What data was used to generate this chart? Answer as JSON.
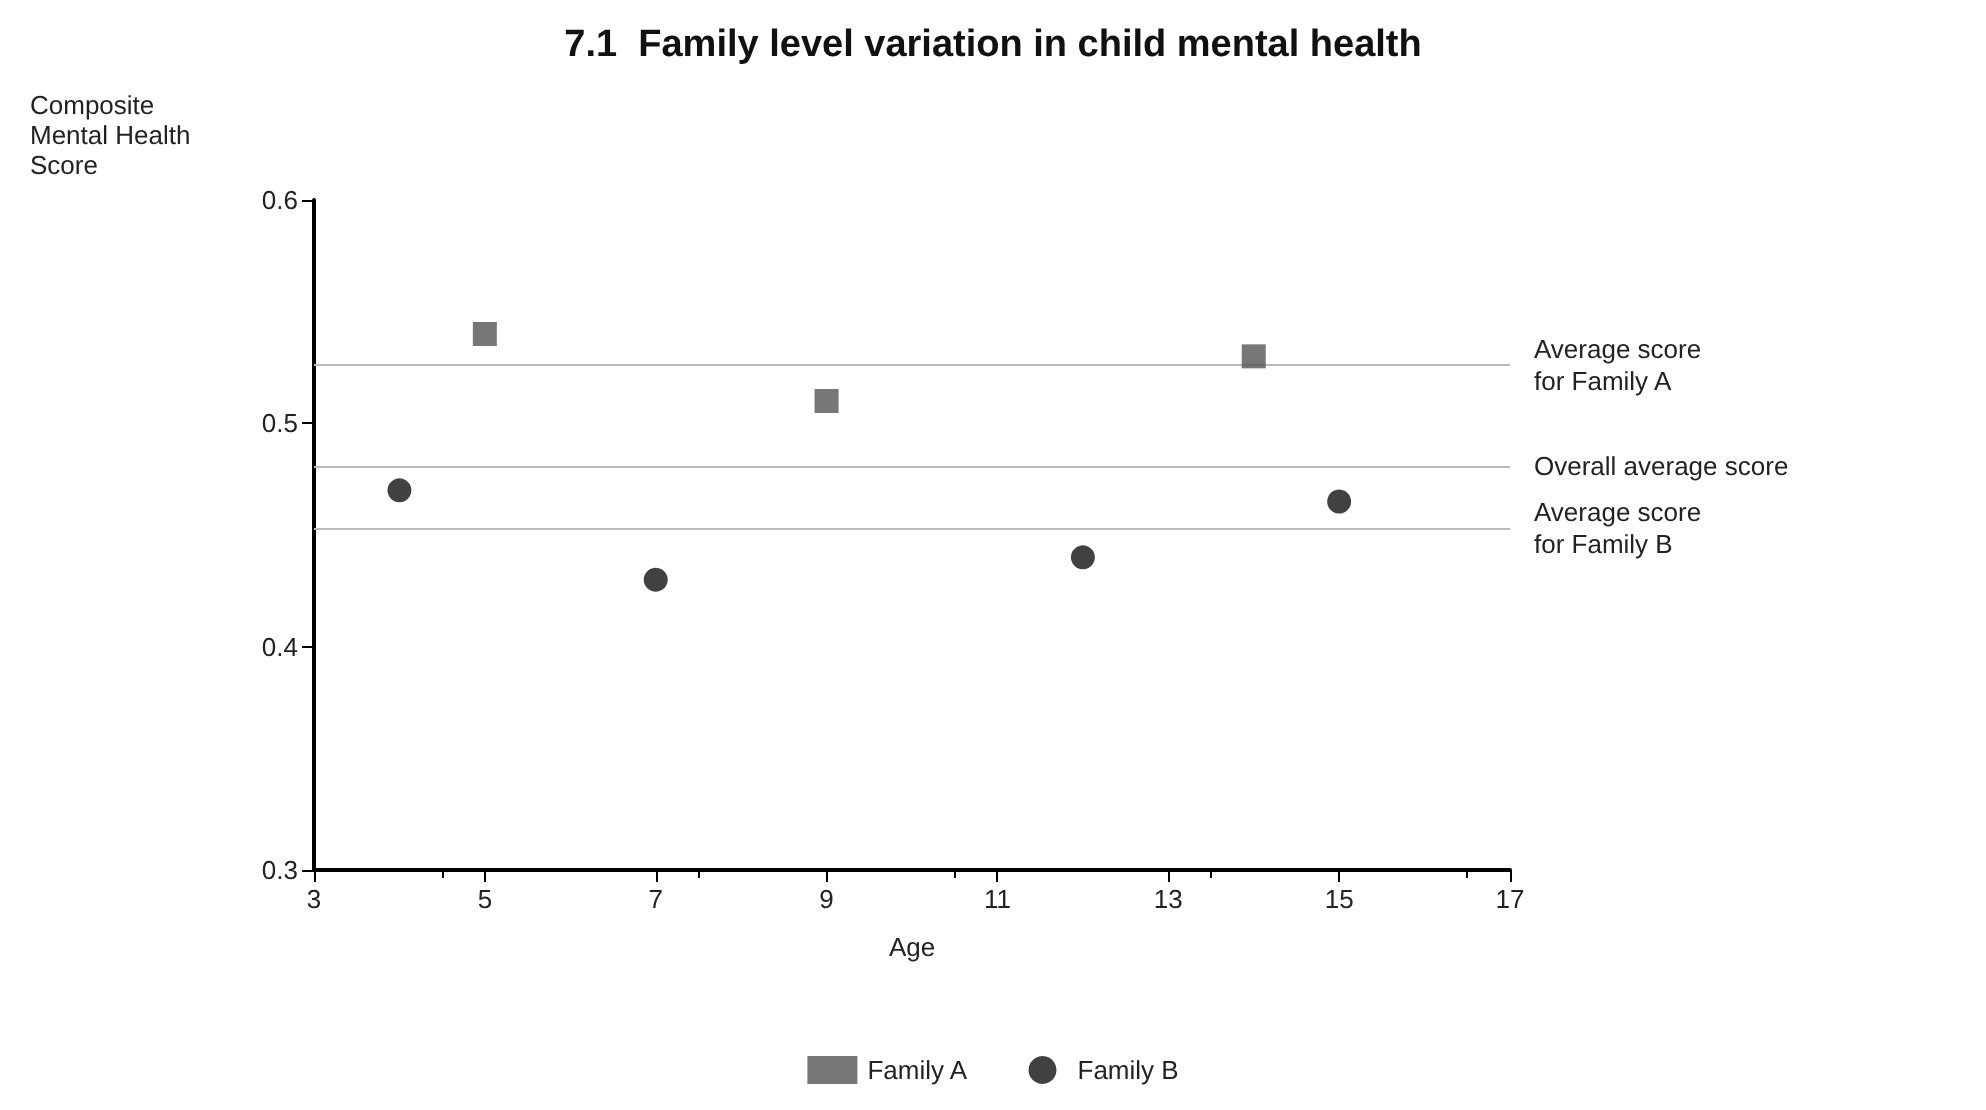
{
  "chart_data": {
    "type": "scatter",
    "title": "7.1  Family level variation in child mental health",
    "xlabel": "Age",
    "ylabel": "Composite Mental Health Score",
    "xlim": [
      3,
      17
    ],
    "xticks": [
      3,
      5,
      7,
      9,
      11,
      13,
      15,
      17
    ],
    "ylim": [
      0.3,
      0.6
    ],
    "yticks": [
      0.3,
      0.4,
      0.5,
      0.6
    ],
    "series": [
      {
        "name": "Family A",
        "color": "#555555",
        "marker": "square",
        "x": [
          5,
          9,
          14
        ],
        "values": [
          0.54,
          0.51,
          0.53
        ]
      },
      {
        "name": "Family B",
        "color": "#111111",
        "marker": "circle",
        "x": [
          4,
          7,
          12,
          15
        ],
        "values": [
          0.47,
          0.43,
          0.44,
          0.465
        ]
      }
    ],
    "ref_lines": [
      {
        "axis": "y",
        "value": 0.526,
        "label": "Average score for Family A",
        "color": "#bbbbbb"
      },
      {
        "axis": "y",
        "value": 0.481,
        "label": "Overall average score",
        "color": "#bbbbbb"
      },
      {
        "axis": "y",
        "value": 0.453,
        "label": "Average score for Family B",
        "color": "#bbbbbb"
      }
    ],
    "grid": false,
    "legend": "bottom"
  }
}
